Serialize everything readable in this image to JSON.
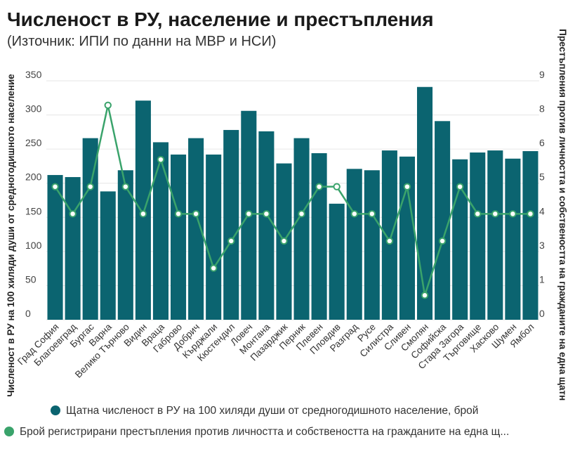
{
  "title": "Численост в РУ, население и престъпления",
  "subtitle": "(Източник: ИПИ по данни на МВР и НСИ)",
  "colors": {
    "bar": "#0b6470",
    "line": "#3aa36b",
    "grid": "#e6e6e6"
  },
  "chart_data": {
    "type": "bar",
    "categories": [
      "Град София",
      "Благоевград",
      "Бургас",
      "Варна",
      "Велико Търново",
      "Видин",
      "Враца",
      "Габрово",
      "Добрич",
      "Кърджали",
      "Кюстендил",
      "Ловеч",
      "Монтана",
      "Пазарджик",
      "Перник",
      "Плевен",
      "Пловдив",
      "Разград",
      "Русе",
      "Силистра",
      "Сливен",
      "Смолян",
      "Софийска",
      "Стара Загора",
      "Търговище",
      "Хасково",
      "Шумен",
      "Ямбол"
    ],
    "series": [
      {
        "name": "Щатна численост в РУ на 100 хиляди души от средногодишното население, брой",
        "type": "bar",
        "axis": "left",
        "values": [
          212,
          209,
          266,
          188,
          219,
          321,
          260,
          242,
          266,
          242,
          278,
          306,
          276,
          229,
          266,
          244,
          170,
          221,
          219,
          248,
          239,
          341,
          291,
          235,
          245,
          248,
          236,
          247
        ]
      },
      {
        "name": "Брой регистрирани престъпления против личността и собствеността на гражданите на една щатна бройка",
        "type": "line",
        "axis": "right",
        "values": [
          4.9,
          3.9,
          4.9,
          7.9,
          4.9,
          3.9,
          5.9,
          3.9,
          3.9,
          1.9,
          2.9,
          3.9,
          3.9,
          2.9,
          3.9,
          4.9,
          4.9,
          3.9,
          3.9,
          2.9,
          4.9,
          0.9,
          2.9,
          4.9,
          3.9,
          3.9,
          3.9,
          3.9
        ]
      }
    ],
    "y_left": {
      "label": "Численост в РУ на 100 хиляди души от средногодишното население",
      "ticks": [
        "0",
        "50",
        "100",
        "150",
        "200",
        "250",
        "300",
        "350"
      ],
      "ylim": [
        0,
        350
      ]
    },
    "y_right": {
      "label": "Престъпления против личността и собствеността на гражданите на една щатна бройка",
      "ticks": [
        "0",
        "1",
        "3",
        "4",
        "5",
        "6",
        "8",
        "9"
      ],
      "ylim": [
        0,
        8.8
      ]
    },
    "legend": [
      {
        "label": "Щатна численост в РУ на 100 хиляди души от средногодишното население, брой",
        "color": "#0b6470"
      },
      {
        "label": "Брой регистрирани престъпления против личността и собствеността на гражданите на една щ...",
        "color": "#3aa36b"
      }
    ],
    "grid": true,
    "legend_position": "bottom"
  }
}
